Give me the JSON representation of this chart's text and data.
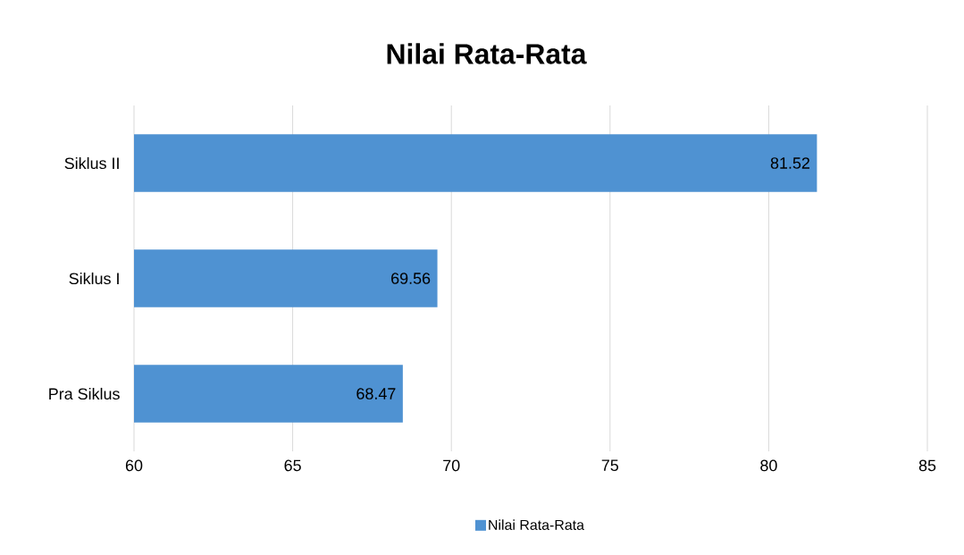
{
  "chart_data": {
    "type": "bar",
    "orientation": "horizontal",
    "title": "Nilai Rata-Rata",
    "categories": [
      "Siklus II",
      "Siklus I",
      "Pra Siklus"
    ],
    "series": [
      {
        "name": "Nilai Rata-Rata",
        "color": "#4f92d2",
        "values": [
          81.52,
          69.56,
          68.47
        ]
      }
    ],
    "xlim": [
      60,
      85
    ],
    "xticks": [
      60,
      65,
      70,
      75,
      80,
      85
    ],
    "grid": "x",
    "legend": "bottom",
    "data_labels": true
  }
}
